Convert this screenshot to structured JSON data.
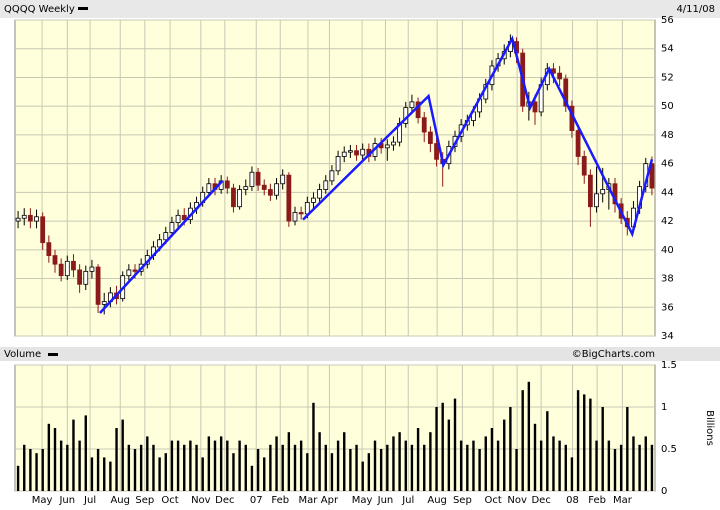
{
  "chart_data": [
    {
      "type": "candlestick",
      "title": "QQQQ Weekly",
      "date": "4/11/08",
      "open": [
        42.0,
        42.2,
        42.4,
        42.0,
        42.3,
        40.5,
        39.6,
        39.0,
        38.2,
        39.2,
        38.6,
        37.6,
        38.5,
        38.8,
        36.2,
        36.4,
        37.0,
        36.6,
        38.2,
        38.6,
        38.5,
        39.0,
        39.6,
        40.2,
        40.7,
        41.2,
        41.9,
        42.4,
        42.1,
        42.9,
        43.3,
        44.0,
        44.6,
        44.2,
        44.8,
        44.3,
        43.0,
        44.2,
        44.4,
        45.4,
        44.5,
        44.2,
        43.8,
        44.6,
        45.2,
        42.0,
        42.6,
        42.5,
        43.3,
        43.6,
        44.2,
        44.8,
        45.5,
        46.5,
        46.8,
        46.9,
        46.6,
        47.0,
        46.5,
        47.4,
        47.1,
        47.3,
        47.5,
        48.8,
        49.9,
        50.3,
        49.2,
        48.2,
        47.4,
        46.3,
        46.0,
        47.2,
        47.9,
        48.7,
        49.0,
        49.6,
        50.5,
        51.5,
        52.8,
        53.3,
        53.8,
        54.5,
        53.7,
        50.0,
        50.3,
        49.6,
        51.5,
        52.6,
        52.3,
        51.9,
        50.0,
        48.3,
        46.5,
        45.2,
        43.0,
        43.9,
        44.2,
        44.6,
        43.2,
        42.2,
        41.6,
        42.9,
        44.4,
        46.0
      ],
      "high": [
        42.7,
        42.9,
        42.9,
        42.8,
        42.6,
        41.0,
        40.0,
        39.4,
        39.6,
        39.7,
        39.0,
        38.9,
        39.3,
        39.0,
        37.0,
        37.4,
        37.5,
        38.5,
        39.0,
        39.0,
        39.4,
        40.0,
        40.6,
        41.1,
        41.6,
        42.3,
        42.8,
        42.9,
        43.3,
        43.7,
        44.4,
        45.0,
        45.0,
        45.2,
        45.1,
        44.6,
        44.5,
        44.9,
        45.8,
        45.7,
        44.9,
        44.6,
        45.0,
        45.6,
        45.4,
        43.0,
        43.0,
        43.7,
        44.0,
        44.6,
        45.2,
        45.9,
        46.9,
        47.2,
        47.3,
        47.3,
        47.4,
        47.4,
        47.8,
        47.8,
        47.7,
        47.9,
        49.2,
        50.3,
        50.8,
        50.6,
        49.6,
        48.6,
        47.8,
        46.8,
        47.6,
        48.3,
        49.1,
        49.4,
        50.0,
        50.9,
        51.9,
        53.2,
        53.7,
        54.3,
        55.0,
        54.8,
        54.0,
        51.0,
        50.8,
        52.0,
        53.0,
        53.0,
        52.8,
        52.2,
        50.4,
        48.6,
        46.9,
        45.6,
        45.8,
        45.7,
        45.0,
        45.0,
        43.6,
        42.7,
        43.4,
        44.8,
        46.4,
        46.5
      ],
      "low": [
        41.5,
        41.7,
        41.5,
        41.5,
        40.0,
        39.1,
        38.4,
        37.8,
        37.9,
        38.1,
        37.0,
        37.2,
        38.0,
        35.6,
        35.5,
        36.0,
        36.2,
        36.4,
        37.8,
        38.0,
        38.2,
        38.7,
        39.3,
        39.9,
        40.4,
        40.9,
        41.6,
        41.7,
        41.8,
        42.5,
        43.0,
        43.7,
        43.8,
        43.9,
        43.9,
        42.6,
        42.8,
        43.8,
        44.1,
        44.1,
        43.8,
        43.4,
        43.5,
        44.2,
        41.6,
        41.7,
        42.1,
        42.2,
        42.9,
        43.3,
        43.9,
        44.5,
        45.2,
        46.1,
        46.4,
        46.2,
        46.2,
        46.1,
        46.2,
        46.7,
        46.2,
        46.9,
        47.2,
        48.5,
        49.5,
        48.8,
        47.5,
        46.8,
        45.8,
        44.4,
        45.6,
        46.8,
        47.5,
        48.3,
        48.6,
        49.2,
        50.2,
        51.1,
        52.4,
        52.9,
        53.4,
        53.0,
        49.6,
        49.0,
        48.7,
        49.3,
        51.1,
        51.6,
        51.4,
        49.6,
        47.8,
        45.9,
        44.6,
        41.6,
        42.6,
        43.3,
        42.8,
        42.6,
        41.8,
        41.0,
        41.2,
        42.5,
        44.0,
        43.8
      ],
      "close": [
        42.2,
        42.4,
        42.0,
        42.3,
        40.5,
        39.6,
        39.0,
        38.2,
        39.2,
        38.6,
        37.6,
        38.5,
        38.8,
        36.2,
        36.4,
        37.0,
        36.6,
        38.2,
        38.6,
        38.5,
        39.0,
        39.6,
        40.2,
        40.7,
        41.2,
        41.9,
        42.4,
        42.1,
        42.9,
        43.3,
        44.0,
        44.6,
        44.2,
        44.8,
        44.3,
        43.0,
        44.2,
        44.4,
        45.4,
        44.5,
        44.2,
        43.8,
        44.6,
        45.2,
        42.0,
        42.6,
        42.5,
        43.3,
        43.6,
        44.2,
        44.8,
        45.5,
        46.5,
        46.8,
        46.9,
        46.6,
        47.0,
        46.5,
        47.4,
        47.1,
        47.3,
        47.5,
        48.8,
        49.9,
        50.3,
        49.2,
        48.2,
        47.4,
        46.3,
        46.0,
        47.2,
        47.9,
        48.7,
        49.0,
        49.6,
        50.5,
        51.5,
        52.8,
        53.3,
        53.8,
        54.5,
        53.7,
        50.0,
        50.3,
        49.6,
        51.5,
        52.6,
        52.3,
        51.9,
        50.0,
        48.3,
        46.5,
        45.2,
        43.0,
        43.9,
        44.2,
        44.6,
        43.2,
        42.2,
        41.6,
        42.9,
        44.4,
        46.0,
        44.3
      ],
      "up_color": "#ffffff",
      "down_color": "#8b1a1a",
      "xlim": [
        -0.5,
        103.5
      ],
      "ylim": [
        34,
        56
      ],
      "yticks": [
        34,
        36,
        38,
        40,
        42,
        44,
        46,
        48,
        50,
        52,
        54,
        56
      ],
      "grid": true,
      "trendline": {
        "color": "#1a1aff",
        "x": [
          13.3,
          33.2,
          null,
          46.3,
          66.7,
          69.1,
          80.3,
          83.2,
          86.3,
          99.8,
          103
        ],
        "values": [
          35.6,
          44.8,
          null,
          42.1,
          50.7,
          45.9,
          54.7,
          49.9,
          52.6,
          41.1,
          46.3
        ]
      }
    },
    {
      "type": "bar",
      "title": "Volume",
      "credit": "©BigCharts.com",
      "y_label": "Billions",
      "values": [
        0.3,
        0.55,
        0.5,
        0.45,
        0.5,
        0.8,
        0.75,
        0.6,
        0.55,
        0.85,
        0.6,
        0.9,
        0.4,
        0.5,
        0.4,
        0.35,
        0.75,
        0.85,
        0.55,
        0.5,
        0.55,
        0.65,
        0.55,
        0.4,
        0.45,
        0.6,
        0.6,
        0.55,
        0.6,
        0.55,
        0.4,
        0.65,
        0.6,
        0.65,
        0.6,
        0.45,
        0.6,
        0.55,
        0.3,
        0.5,
        0.4,
        0.55,
        0.65,
        0.55,
        0.7,
        0.55,
        0.6,
        0.45,
        1.05,
        0.7,
        0.55,
        0.45,
        0.6,
        0.7,
        0.5,
        0.55,
        0.35,
        0.45,
        0.6,
        0.5,
        0.55,
        0.65,
        0.7,
        0.6,
        0.55,
        0.75,
        0.55,
        0.7,
        1.0,
        1.05,
        0.85,
        1.1,
        0.6,
        0.55,
        0.6,
        0.5,
        0.65,
        0.75,
        0.6,
        0.85,
        1.0,
        0.5,
        1.2,
        1.3,
        0.8,
        0.6,
        0.95,
        0.65,
        0.6,
        0.55,
        0.4,
        1.2,
        1.15,
        1.1,
        0.6,
        1.0,
        0.6,
        0.5,
        0.55,
        1.0,
        0.65,
        0.55,
        0.65,
        0.55
      ],
      "color": "#000000",
      "xlim": [
        -0.5,
        103.5
      ],
      "ylim": [
        0,
        1.5
      ],
      "yticks": [
        0,
        0.5,
        1,
        1.5
      ],
      "grid": true,
      "xticks": [
        {
          "value": 3.9,
          "label": "May"
        },
        {
          "value": 8,
          "label": "Jun"
        },
        {
          "value": 11.7,
          "label": "Jul"
        },
        {
          "value": 16.6,
          "label": "Aug"
        },
        {
          "value": 20.6,
          "label": "Sep"
        },
        {
          "value": 24.7,
          "label": "Oct"
        },
        {
          "value": 29.7,
          "label": "Nov"
        },
        {
          "value": 33.6,
          "label": "Dec"
        },
        {
          "value": 38.7,
          "label": "07"
        },
        {
          "value": 42.6,
          "label": "Feb"
        },
        {
          "value": 47.1,
          "label": "Mar"
        },
        {
          "value": 50.6,
          "label": "Apr"
        },
        {
          "value": 55.9,
          "label": "May"
        },
        {
          "value": 59.7,
          "label": "Jun"
        },
        {
          "value": 63.4,
          "label": "Jul"
        },
        {
          "value": 68.1,
          "label": "Aug"
        },
        {
          "value": 72.2,
          "label": "Sep"
        },
        {
          "value": 77.2,
          "label": "Oct"
        },
        {
          "value": 81.1,
          "label": "Nov"
        },
        {
          "value": 85,
          "label": "Dec"
        },
        {
          "value": 90.1,
          "label": "08"
        },
        {
          "value": 94.1,
          "label": "Feb"
        },
        {
          "value": 98.2,
          "label": "Mar"
        }
      ]
    }
  ]
}
